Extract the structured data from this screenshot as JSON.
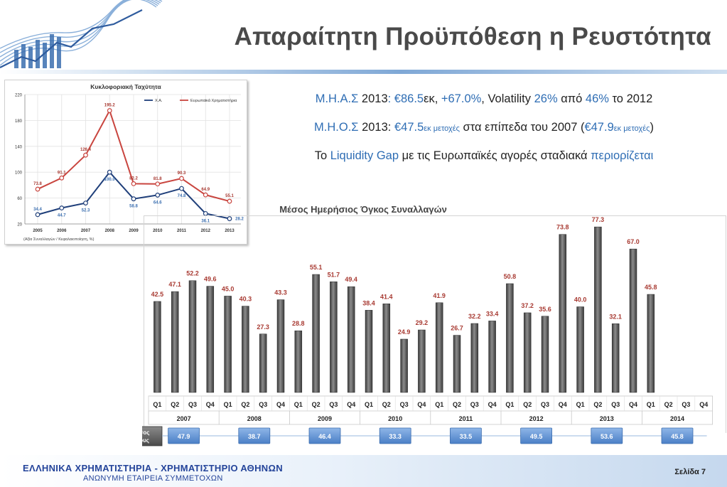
{
  "title": "Απαραίτητη Προϋπόθεση η Ρευστότητα",
  "bullets": [
    {
      "parts": [
        [
          "Μ.Η.Α.Σ",
          "b"
        ],
        [
          " 2013",
          "n"
        ],
        [
          ": ",
          "b"
        ],
        [
          "€86.5",
          "b"
        ],
        [
          "εκ",
          "n"
        ],
        [
          ", ",
          "n"
        ],
        [
          "+67.0%",
          "b"
        ],
        [
          ", Volatility ",
          "n"
        ],
        [
          "26%",
          "b"
        ],
        [
          " από ",
          "n"
        ],
        [
          "46%",
          "b"
        ],
        [
          " το 2012",
          "n"
        ]
      ]
    },
    {
      "parts": [
        [
          "Μ.Η.Ο.Σ",
          "b"
        ],
        [
          " 2013: ",
          "n"
        ],
        [
          "€47.5",
          "b"
        ],
        [
          "εκ μετοχές",
          "s"
        ],
        [
          " στα επίπεδα του 2007 (",
          "n"
        ],
        [
          "€47.9",
          "b"
        ],
        [
          "εκ μετοχές",
          "s"
        ],
        [
          ")",
          "n"
        ]
      ]
    },
    {
      "parts": [
        [
          "Το ",
          "n"
        ],
        [
          "Liquidity Gap",
          "b"
        ],
        [
          " με τις Ευρωπαϊκές αγορές σταδιακά ",
          "n"
        ],
        [
          "περιορίζεται",
          "b"
        ]
      ]
    }
  ],
  "colors": {
    "blue_text": "#2e6db4",
    "bar_label": "#a83a32",
    "red_line": "#c9453f",
    "navy_line": "#1f3f7a",
    "avg_box": "#5b8fd4"
  },
  "footer": {
    "org": "ΕΛΛΗΝΙΚΑ ΧΡΗΜΑΤΙΣΤΗΡΙΑ - ΧΡΗΜΑΤΙΣΤΗΡΙΟ ΑΘΗΝΩΝ",
    "sub": "ΑΝΩΝΥΜΗ ΕΤΑΙΡΕΙΑ ΣΥΜΜΕΤΟΧΩΝ",
    "page": "Σελίδα 7"
  },
  "chart_data": [
    {
      "type": "line",
      "title": "Κυκλοφοριακή Ταχύτητα",
      "note": "(Αξία Συναλλαγών / Κεφαλαιοποίηση, %)",
      "x": [
        "2005",
        "2006",
        "2007",
        "2008",
        "2009",
        "2010",
        "2011",
        "2012",
        "2013"
      ],
      "ylim": [
        20,
        220
      ],
      "yticks": [
        20,
        60,
        100,
        140,
        180,
        220
      ],
      "grid": true,
      "legend_position": "top-right",
      "series": [
        {
          "name": "Χ.Α.",
          "color": "#1f3f7a",
          "values": [
            34.4,
            44.7,
            52.3,
            100.0,
            58.8,
            64.6,
            74.8,
            36.1,
            28.2
          ]
        },
        {
          "name": "Ευρωπαϊκά Χρηματιστήρια",
          "color": "#c9453f",
          "values": [
            73.8,
            91.1,
            126.4,
            195.2,
            82.2,
            81.8,
            90.3,
            64.9,
            55.1
          ]
        }
      ]
    },
    {
      "type": "bar",
      "title": "Μέσος Ημερήσιος Όγκος Συναλλαγών",
      "quarters": [
        "Q1",
        "Q2",
        "Q3",
        "Q4"
      ],
      "years": [
        "2007",
        "2008",
        "2009",
        "2010",
        "2011",
        "2012",
        "2013",
        "2014"
      ],
      "values": [
        42.5,
        47.1,
        52.2,
        49.6,
        45.0,
        40.3,
        27.3,
        43.3,
        28.8,
        55.1,
        51.7,
        49.4,
        38.4,
        41.4,
        24.9,
        29.2,
        41.9,
        26.7,
        32.2,
        33.4,
        50.8,
        37.2,
        35.6,
        73.8,
        40.0,
        77.3,
        32.1,
        67.0,
        45.8
      ],
      "labels": [
        "42.5",
        "47.1",
        "52.2",
        "49.6",
        "45.0",
        "40.3",
        "27.3",
        "43.3",
        "28.8",
        "55.1",
        "51.7",
        "49.4",
        "38.4",
        "41.4",
        "24.9",
        "29.2",
        "41.9",
        "26.7",
        "32.2",
        "33.4",
        "50.8",
        "37.2",
        "35.6",
        "73.8",
        "40.0",
        "77.3",
        "32.1",
        "67.0",
        "45.8"
      ],
      "avg_label": "Μέσος Έτους",
      "yearly_avg": [
        "47.9",
        "38.7",
        "46.4",
        "33.3",
        "33.5",
        "49.5",
        "53.6",
        "45.8"
      ],
      "ylim": [
        0,
        80
      ]
    }
  ]
}
